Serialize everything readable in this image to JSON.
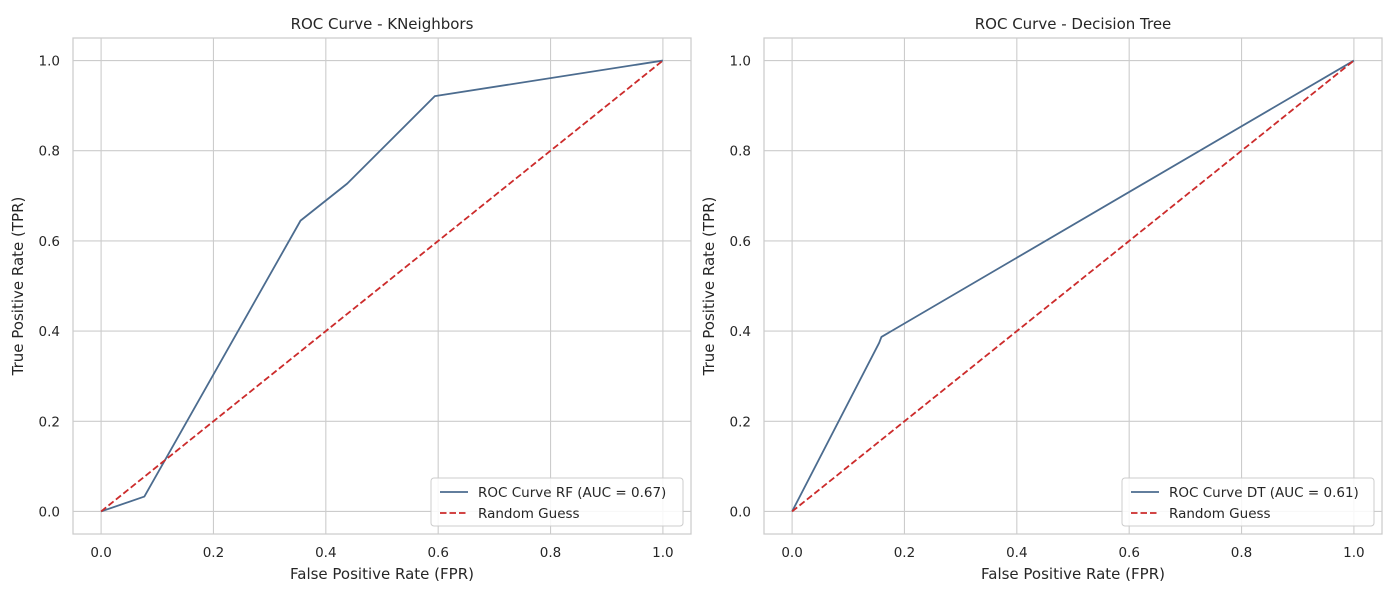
{
  "colors": {
    "roc": "#4c6c8f",
    "random": "#cc2b2b",
    "grid": "#cccccc",
    "spine": "#cccccc",
    "legend_border": "#cccccc"
  },
  "chart_data": [
    {
      "type": "line",
      "title": "ROC Curve - KNeighbors",
      "xlabel": "False Positive Rate (FPR)",
      "ylabel": "True Positive Rate (TPR)",
      "xlim": [
        -0.05,
        1.05
      ],
      "ylim": [
        -0.05,
        1.05
      ],
      "xticks": [
        "0.0",
        "0.2",
        "0.4",
        "0.6",
        "0.8",
        "1.0"
      ],
      "yticks": [
        "0.0",
        "0.2",
        "0.4",
        "0.6",
        "0.8",
        "1.0"
      ],
      "grid": true,
      "legend_position": "lower right",
      "series": [
        {
          "name": "ROC Curve RF (AUC = 0.67)",
          "style": "solid",
          "color": "#4c6c8f",
          "x": [
            0.0,
            0.077,
            0.355,
            0.438,
            0.594,
            1.0
          ],
          "y": [
            0.0,
            0.033,
            0.645,
            0.727,
            0.921,
            1.0
          ]
        },
        {
          "name": "Random Guess",
          "style": "dashed",
          "color": "#cc2b2b",
          "x": [
            0.0,
            1.0
          ],
          "y": [
            0.0,
            1.0
          ]
        }
      ]
    },
    {
      "type": "line",
      "title": "ROC Curve - Decision Tree",
      "xlabel": "False Positive Rate (FPR)",
      "ylabel": "True Positive Rate (TPR)",
      "xlim": [
        -0.05,
        1.05
      ],
      "ylim": [
        -0.05,
        1.05
      ],
      "xticks": [
        "0.0",
        "0.2",
        "0.4",
        "0.6",
        "0.8",
        "1.0"
      ],
      "yticks": [
        "0.0",
        "0.2",
        "0.4",
        "0.6",
        "0.8",
        "1.0"
      ],
      "grid": true,
      "legend_position": "lower right",
      "series": [
        {
          "name": "ROC Curve DT (AUC = 0.61)",
          "style": "solid",
          "color": "#4c6c8f",
          "x": [
            0.0,
            0.155,
            0.159,
            1.0
          ],
          "y": [
            0.0,
            0.374,
            0.387,
            1.0
          ]
        },
        {
          "name": "Random Guess",
          "style": "dashed",
          "color": "#cc2b2b",
          "x": [
            0.0,
            1.0
          ],
          "y": [
            0.0,
            1.0
          ]
        }
      ]
    }
  ]
}
